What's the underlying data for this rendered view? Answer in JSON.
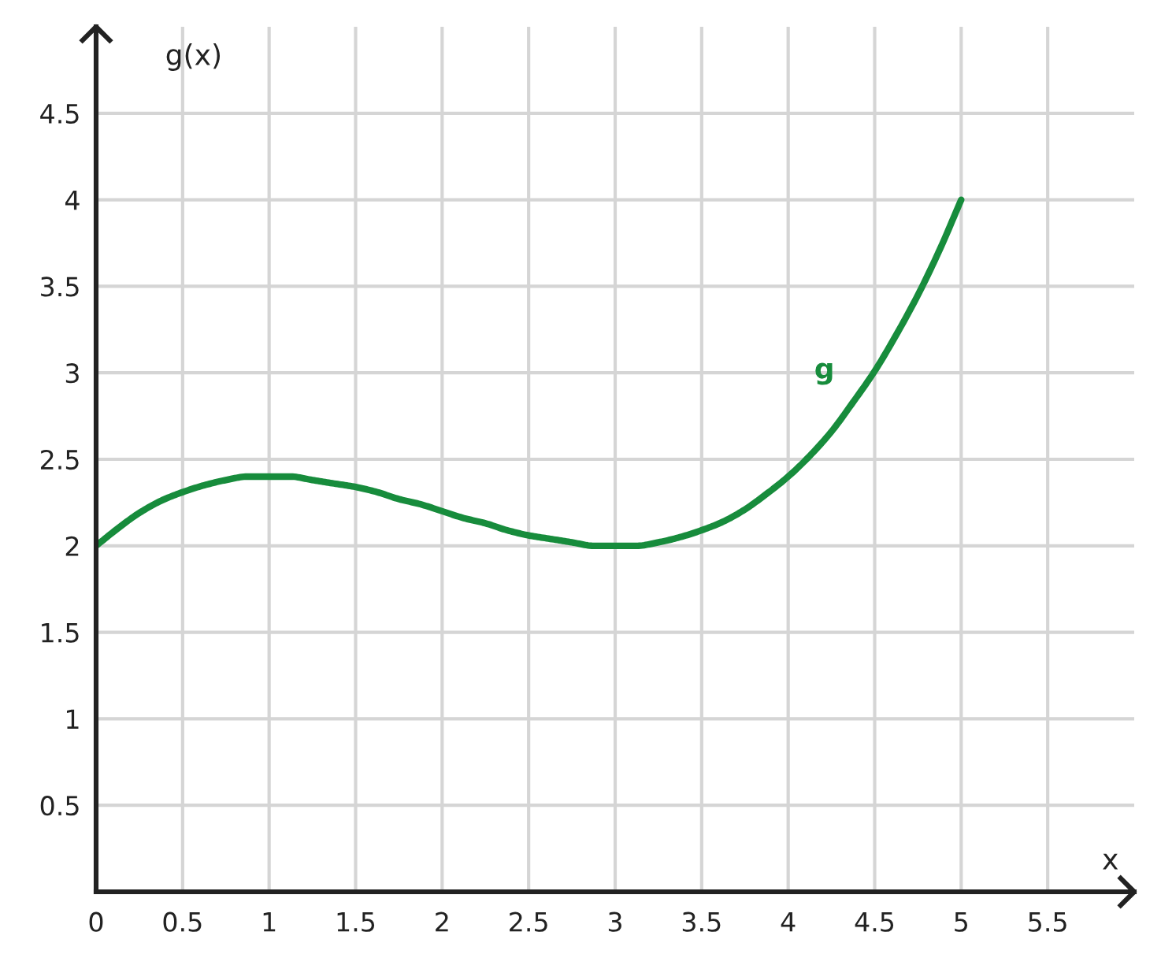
{
  "chart_data": {
    "type": "line",
    "xlabel": "x",
    "ylabel": "g(x)",
    "x": [
      0,
      0.125,
      0.25,
      0.375,
      0.5,
      0.625,
      0.75,
      0.875,
      1,
      1.125,
      1.25,
      1.375,
      1.5,
      1.625,
      1.75,
      1.875,
      2,
      2.125,
      2.25,
      2.375,
      2.5,
      2.625,
      2.75,
      2.875,
      3,
      3.125,
      3.25,
      3.375,
      3.5,
      3.625,
      3.75,
      3.875,
      4,
      4.125,
      4.25,
      4.375,
      4.5,
      4.625,
      4.75,
      4.875,
      5
    ],
    "series": [
      {
        "name": "g",
        "color": "#178c3c",
        "values": [
          2,
          2.1,
          2.19,
          2.26,
          2.31,
          2.35,
          2.38,
          2.4,
          2.4,
          2.4,
          2.38,
          2.36,
          2.34,
          2.31,
          2.27,
          2.24,
          2.2,
          2.16,
          2.13,
          2.09,
          2.06,
          2.04,
          2.02,
          2,
          2,
          2,
          2.02,
          2.05,
          2.09,
          2.14,
          2.21,
          2.3,
          2.4,
          2.52,
          2.66,
          2.83,
          3.01,
          3.22,
          3.45,
          3.71,
          4
        ]
      }
    ],
    "xlim": [
      0,
      6
    ],
    "ylim": [
      0,
      5
    ],
    "xticks": [
      0,
      0.5,
      1,
      1.5,
      2,
      2.5,
      3,
      3.5,
      4,
      4.5,
      5,
      5.5
    ],
    "yticks": [
      0.5,
      1,
      1.5,
      2,
      2.5,
      3,
      3.5,
      4,
      4.5
    ],
    "grid": true,
    "line_style": "solid"
  }
}
